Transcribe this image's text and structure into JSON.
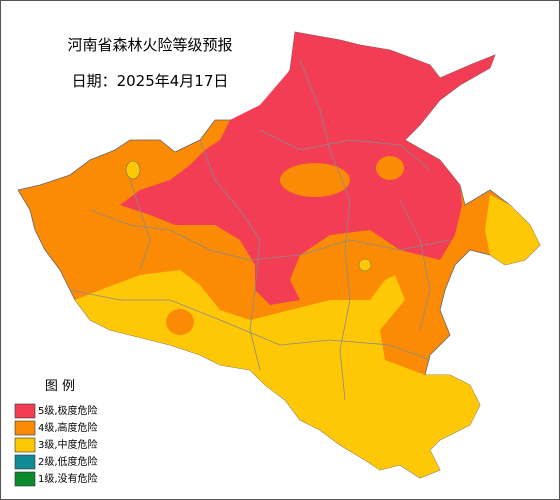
{
  "header": {
    "title": "河南省森林火险等级预报",
    "date": "日期：2025年4月17日"
  },
  "legend": {
    "title": "图  例",
    "items": [
      {
        "label": "5级,极度危险",
        "color": "#f23d55"
      },
      {
        "label": "4级,高度危险",
        "color": "#fb8b05"
      },
      {
        "label": "3级,中度危险",
        "color": "#fec807"
      },
      {
        "label": "2级,低度危险",
        "color": "#108b96"
      },
      {
        "label": "1级,没有危险",
        "color": "#0a8a2a"
      }
    ]
  }
}
